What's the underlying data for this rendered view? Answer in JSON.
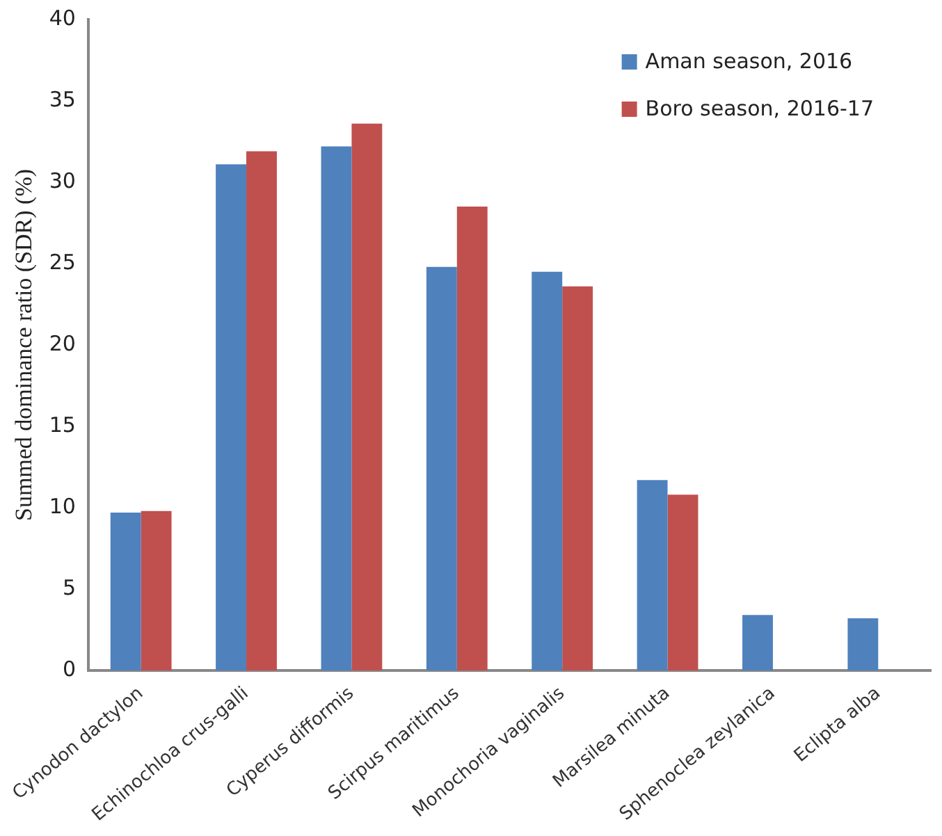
{
  "chart_data": {
    "type": "bar",
    "ylabel": "Summed dominance ratio (SDR) (%)",
    "categories": [
      "Cynodon dactylon",
      "Echinochloa crus-galli",
      "Cyperus difformis",
      "Scirpus maritimus",
      "Monochoria vaginalis",
      "Marsilea minuta",
      "Sphenoclea zeylanica",
      "Eclipta alba"
    ],
    "series": [
      {
        "name": "Aman season, 2016",
        "color": "#4f81bd",
        "values": [
          9.7,
          31.1,
          32.2,
          24.8,
          24.5,
          11.7,
          3.4,
          3.2
        ]
      },
      {
        "name": "Boro season, 2016-17",
        "color": "#c0504d",
        "values": [
          9.8,
          31.9,
          33.6,
          28.5,
          23.6,
          10.8,
          0,
          0
        ]
      }
    ],
    "ylim": [
      0,
      40
    ],
    "yticks": [
      0,
      5,
      10,
      15,
      20,
      25,
      30,
      35,
      40
    ],
    "grid": false,
    "legend": "top right"
  }
}
